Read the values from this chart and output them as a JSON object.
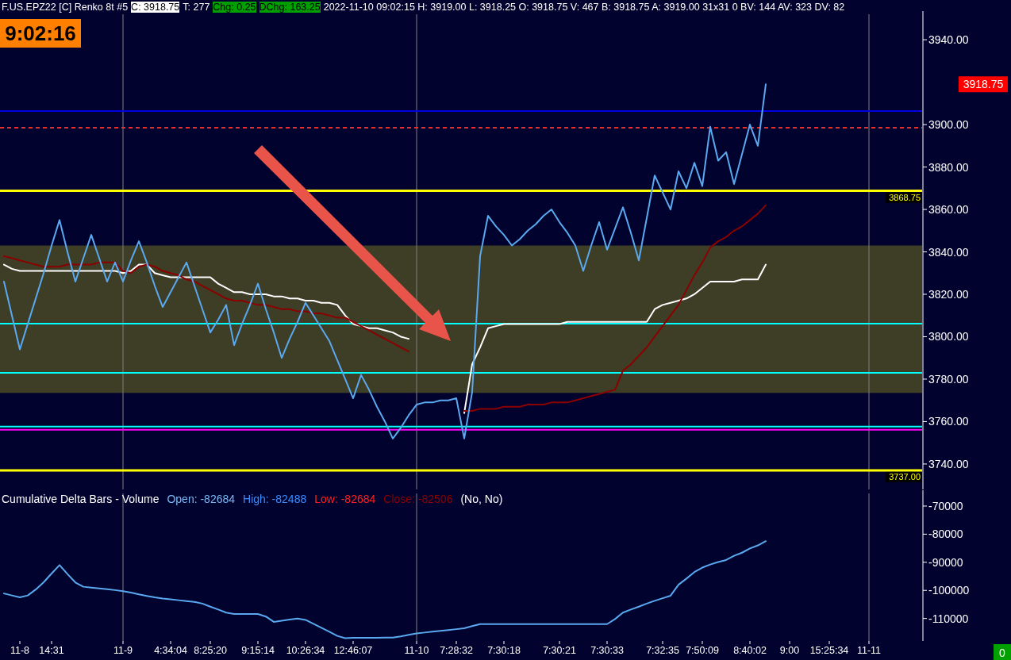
{
  "chart_data": [
    {
      "type": "line",
      "title": "F.US.EPZ22 [C]  Renko 8t  #5",
      "annotations": [
        "C: 3918.75",
        "T: 277",
        "Chg: 0.25",
        "DChg: 163.25",
        "2022-11-10 09:02:15 H: 3919.00 L: 3918.25 O: 3918.75 V: 467 B: 3918.75 A: 3919.00 31x31 0 BV: 144 AV: 323 DV: 82",
        "9:02:16",
        "3918.75"
      ],
      "categories": [
        null,
        null,
        "11-8",
        null,
        null,
        null,
        "14:31",
        null,
        null,
        null,
        null,
        null,
        null,
        null,
        null,
        "11-9",
        null,
        null,
        null,
        null,
        null,
        "4:34:04",
        null,
        null,
        null,
        null,
        "8:25:20",
        null,
        null,
        null,
        null,
        null,
        "9:15:14",
        null,
        null,
        null,
        null,
        null,
        "10:26:34",
        null,
        null,
        null,
        null,
        null,
        "12:46:07",
        null,
        null,
        null,
        null,
        null,
        null,
        null,
        "11-10",
        null,
        null,
        null,
        null,
        "7:28:32",
        null,
        null,
        null,
        null,
        null,
        "7:30:18",
        null,
        null,
        null,
        null,
        null,
        null,
        "7:30:21",
        null,
        null,
        null,
        null,
        null,
        "7:30:33",
        null,
        null,
        null,
        null,
        null,
        null,
        "7:32:35",
        null,
        null,
        null,
        null,
        "7:50:09",
        null,
        null,
        null,
        null,
        null,
        "8:40:02",
        null,
        null,
        null,
        null,
        "9:00",
        null,
        null,
        null,
        null,
        "15:25:34",
        null,
        null,
        null,
        null,
        "11-11",
        null,
        null,
        null,
        null,
        null,
        null
      ],
      "ylim": [
        3728,
        3952
      ],
      "yticks": [
        {
          "value": 3740,
          "label": "3740.00"
        },
        {
          "value": 3760,
          "label": "3760.00"
        },
        {
          "value": 3780,
          "label": "3780.00"
        },
        {
          "value": 3800,
          "label": "3800.00"
        },
        {
          "value": 3820,
          "label": "3820.00"
        },
        {
          "value": 3840,
          "label": "3840.00"
        },
        {
          "value": 3860,
          "label": "3860.00"
        },
        {
          "value": 3880,
          "label": "3880.00"
        },
        {
          "value": 3900,
          "label": "3900.00"
        },
        {
          "value": 3940,
          "label": "3940.00"
        }
      ],
      "tick_labels": "y",
      "bands": [
        {
          "axis": "y",
          "from": 3773.5,
          "to": 3843,
          "color": "#3e3d26"
        }
      ],
      "ref_lines": [
        {
          "axis": "x",
          "value": "11-9",
          "color": "#808080",
          "line_style": "solid"
        },
        {
          "axis": "x",
          "value": "11-10",
          "color": "#808080",
          "line_style": "solid"
        },
        {
          "axis": "x",
          "value": "11-11",
          "color": "#808080",
          "line_style": "solid"
        },
        {
          "axis": "y",
          "value": 3906.4,
          "color": "#0000e0",
          "line_style": "solid"
        },
        {
          "axis": "y",
          "value": 3898.5,
          "color": "#e03030",
          "line_style": "dashed"
        },
        {
          "axis": "y",
          "value": 3868.75,
          "label": "3868.75",
          "color": "#ffff00",
          "line_style": "solid"
        },
        {
          "axis": "y",
          "value": 3737,
          "label": "3737.00",
          "color": "#ffff00",
          "line_style": "solid"
        },
        {
          "axis": "y",
          "value": 3806.2,
          "color": "#00ffff",
          "line_style": "solid"
        },
        {
          "axis": "y",
          "value": 3783,
          "color": "#00ffff",
          "line_style": "solid"
        },
        {
          "axis": "y",
          "value": 3757.6,
          "color": "#00ffff",
          "line_style": "solid"
        },
        {
          "axis": "y",
          "value": 3756.1,
          "color": "#ff00ff",
          "line_style": "solid"
        }
      ],
      "series": [
        {
          "color": "#ffffff",
          "values": [
            3834,
            3832,
            3831,
            3831,
            3831,
            3831,
            3831,
            3831,
            3831,
            3831,
            3831,
            3831,
            3831,
            3831,
            3831,
            3830,
            3831,
            3834,
            3834,
            3830,
            3829,
            3828,
            3828,
            3828,
            3828,
            3828,
            3828,
            3825,
            3823,
            3821,
            3821,
            3820,
            3820,
            3820,
            3819,
            3819,
            3818,
            3818,
            3817,
            3817,
            3816,
            3816,
            3815,
            3810,
            3806,
            3805,
            3804,
            3804,
            3803,
            3802,
            3800,
            3799,
            null,
            null,
            null,
            null,
            null,
            null,
            3764,
            3787,
            3795,
            3804,
            3805,
            3806,
            3806,
            3806,
            3806,
            3806,
            3806,
            3806,
            3806,
            3807,
            3807,
            3807,
            3807,
            3807,
            3807,
            3807,
            3807,
            3807,
            3807,
            3807,
            3813,
            3815,
            3816,
            3817,
            3818,
            3820,
            3823,
            3826,
            3826,
            3826,
            3826,
            3827,
            3827,
            3827,
            3834,
            null,
            null,
            null,
            null,
            null,
            null,
            null,
            null,
            null,
            null,
            null,
            null,
            null,
            null,
            null,
            null,
            null,
            null,
            null
          ]
        },
        {
          "color": "#8b0000",
          "values": [
            3838,
            3837,
            3836,
            3835,
            3834,
            3833,
            3833,
            3833,
            3834,
            3834,
            3834,
            3834,
            3835,
            3835,
            3835,
            3831,
            3830,
            3833,
            3834,
            3833,
            3831,
            3830,
            3829,
            3827,
            3826,
            3824,
            3822,
            3820,
            3818,
            3817,
            3817,
            3816,
            3815,
            3815,
            3814,
            3813,
            3813,
            3812,
            3812,
            3811,
            3811,
            3810,
            3809,
            3809,
            3807,
            3805,
            3803,
            3801,
            3799,
            3797,
            3795,
            3793,
            null,
            null,
            null,
            null,
            null,
            null,
            3765,
            3765,
            3766,
            3766,
            3766,
            3767,
            3767,
            3767,
            3768,
            3768,
            3768,
            3769,
            3769,
            3769,
            3770,
            3771,
            3772,
            3773,
            3774,
            3775,
            3784,
            3787,
            3791,
            3795,
            3800,
            3805,
            3810,
            3815,
            3822,
            3829,
            3835,
            3842,
            3845,
            3847,
            3850,
            3852,
            3855,
            3858,
            3862,
            null,
            null,
            null,
            null,
            null,
            null,
            null,
            null,
            null,
            null,
            null,
            null,
            null,
            null,
            null,
            null,
            null,
            null,
            null
          ]
        },
        {
          "color": "#5aa9f0",
          "values": [
            3826,
            3810,
            3794,
            3806,
            3818,
            3830,
            3843,
            3855,
            3840,
            3826,
            3837,
            3848,
            3837,
            3826,
            3835,
            3826,
            3836,
            3845,
            3835,
            3824,
            3814,
            3821,
            3828,
            3835,
            3824,
            3813,
            3802,
            3808,
            3815,
            3796,
            3806,
            3815,
            3825,
            3813,
            3802,
            3790,
            3799,
            3807,
            3816,
            3810,
            3804,
            3798,
            3789,
            3780,
            3771,
            3782,
            3775,
            3767,
            3760,
            3752,
            3757,
            3763,
            3768,
            3769,
            3769,
            3770,
            3770,
            3771,
            3752,
            3774,
            3838,
            3857,
            3852,
            3848,
            3843,
            3846,
            3850,
            3853,
            3857,
            3860,
            3854,
            3849,
            3843,
            3831,
            3843,
            3854,
            3841,
            3851,
            3861,
            3849,
            3836,
            3856,
            3876,
            3868,
            3860,
            3878,
            3870,
            3882,
            3871,
            3899,
            3883,
            3887,
            3872,
            3886,
            3900,
            3890,
            3919,
            null,
            null,
            null,
            null,
            null,
            null,
            null,
            null,
            null,
            null,
            null,
            null,
            null,
            null,
            null,
            null,
            null,
            null,
            null
          ]
        }
      ]
    },
    {
      "type": "line",
      "title": "Cumulative Delta Bars - Volume",
      "annotations": [
        "Open: -82684",
        "High: -82488",
        "Low: -82684",
        "Close: -82506",
        "(No, No)",
        "0"
      ],
      "categories": [
        null,
        null,
        "11-8",
        null,
        null,
        null,
        "14:31",
        null,
        null,
        null,
        null,
        null,
        null,
        null,
        null,
        "11-9",
        null,
        null,
        null,
        null,
        null,
        "4:34:04",
        null,
        null,
        null,
        null,
        "8:25:20",
        null,
        null,
        null,
        null,
        null,
        "9:15:14",
        null,
        null,
        null,
        null,
        null,
        "10:26:34",
        null,
        null,
        null,
        null,
        null,
        "12:46:07",
        null,
        null,
        null,
        null,
        null,
        null,
        null,
        "11-10",
        null,
        null,
        null,
        null,
        "7:28:32",
        null,
        null,
        null,
        null,
        null,
        "7:30:18",
        null,
        null,
        null,
        null,
        null,
        null,
        "7:30:21",
        null,
        null,
        null,
        null,
        null,
        "7:30:33",
        null,
        null,
        null,
        null,
        null,
        null,
        "7:32:35",
        null,
        null,
        null,
        null,
        "7:50:09",
        null,
        null,
        null,
        null,
        null,
        "8:40:02",
        null,
        null,
        null,
        null,
        "9:00",
        null,
        null,
        null,
        null,
        "15:25:34",
        null,
        null,
        null,
        null,
        "11-11",
        null,
        null,
        null,
        null,
        null,
        null
      ],
      "ylim": [
        -118000,
        -65500
      ],
      "yticks": [
        -110000,
        -100000,
        -90000,
        -80000,
        -70000
      ],
      "ref_lines": [
        {
          "axis": "x",
          "value": "11-9",
          "color": "#808080",
          "line_style": "solid"
        },
        {
          "axis": "x",
          "value": "11-10",
          "color": "#808080",
          "line_style": "solid"
        },
        {
          "axis": "x",
          "value": "11-11",
          "color": "#808080",
          "line_style": "solid"
        }
      ],
      "series": [
        {
          "color": "#5aa9f0",
          "values": [
            -101100,
            -101800,
            -102500,
            -101800,
            -99700,
            -97100,
            -94000,
            -91000,
            -94200,
            -97200,
            -98700,
            -99000,
            -99300,
            -99600,
            -99900,
            -100300,
            -100800,
            -101400,
            -102000,
            -102500,
            -102900,
            -103200,
            -103500,
            -103800,
            -104100,
            -104700,
            -105800,
            -106800,
            -107900,
            -108400,
            -108400,
            -108400,
            -108400,
            -109300,
            -111200,
            -110800,
            -110400,
            -110000,
            -110500,
            -111900,
            -113300,
            -114700,
            -116200,
            -117000,
            -116900,
            -116900,
            -116900,
            -116900,
            -116800,
            -116800,
            -116400,
            -115800,
            -115300,
            -115000,
            -114700,
            -114400,
            -114100,
            -113800,
            -113500,
            -112700,
            -112000,
            -112000,
            -112000,
            -112000,
            -112000,
            -112000,
            -112000,
            -112000,
            -112000,
            -112000,
            -112000,
            -112000,
            -112000,
            -112000,
            -112000,
            -112000,
            -112000,
            -110200,
            -107900,
            -106800,
            -105800,
            -104700,
            -103700,
            -102800,
            -101900,
            -98000,
            -95800,
            -93500,
            -91900,
            -90800,
            -89900,
            -89200,
            -87700,
            -86600,
            -85100,
            -84000,
            -82500,
            null,
            null,
            null,
            null,
            null,
            null,
            null,
            null,
            null,
            null,
            null,
            null,
            null,
            null,
            null,
            null,
            null,
            null,
            null
          ]
        }
      ]
    }
  ]
}
